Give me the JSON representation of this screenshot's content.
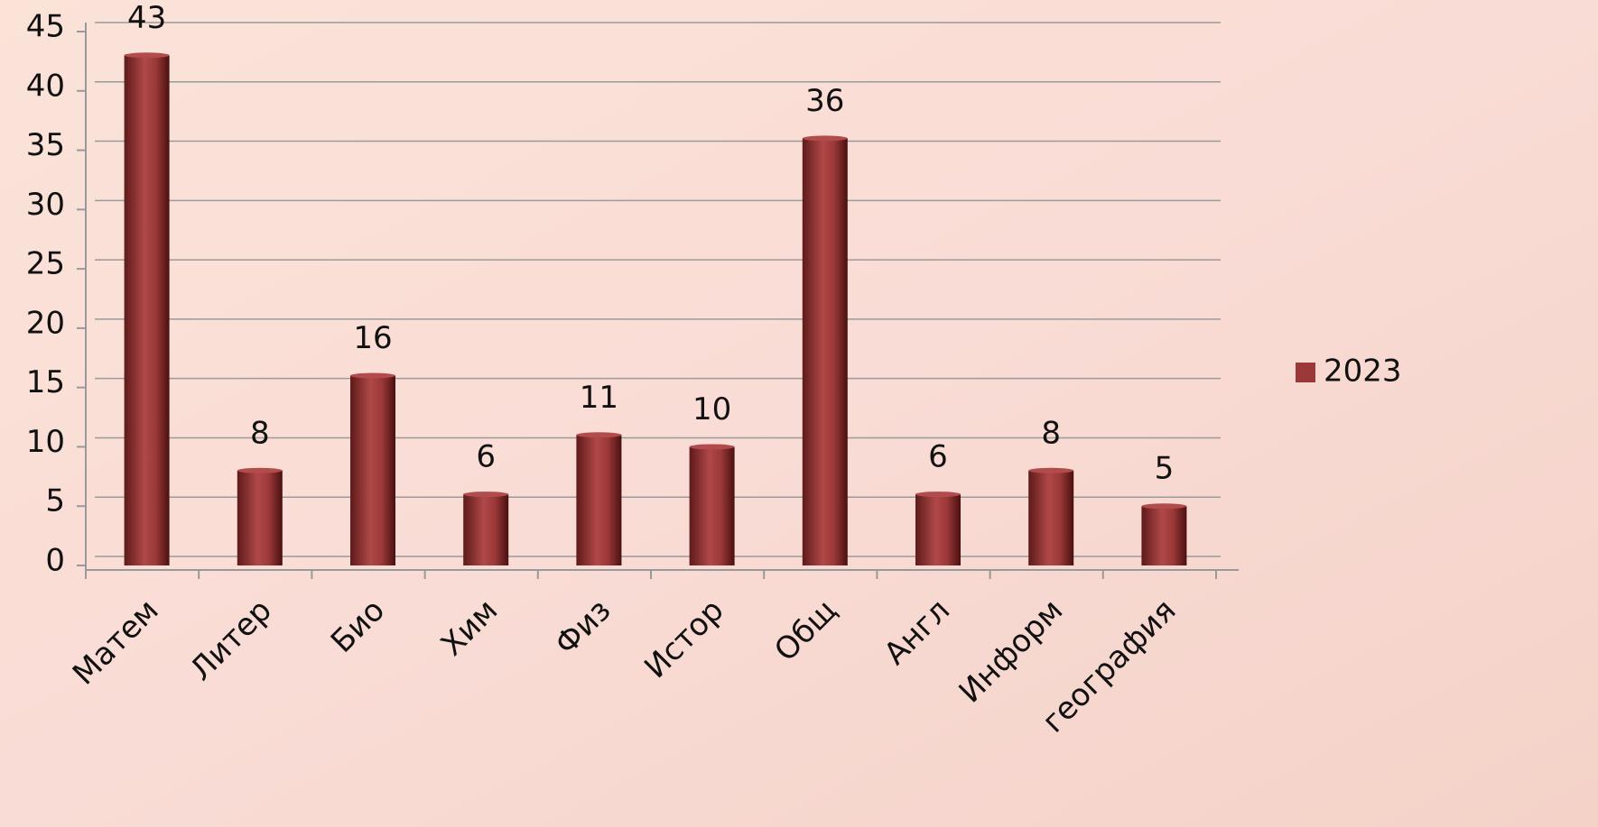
{
  "chart_data": {
    "type": "bar",
    "categories": [
      "Матем",
      "Литер",
      "Био",
      "Хим",
      "Физ",
      "Истор",
      "Общ",
      "Англ",
      "Информ",
      "география"
    ],
    "series": [
      {
        "name": "2023",
        "color": "#9b3838",
        "values": [
          43,
          8,
          16,
          6,
          11,
          10,
          36,
          6,
          8,
          5
        ]
      }
    ],
    "ylim": [
      0,
      45
    ],
    "yticks": [
      0,
      5,
      10,
      15,
      20,
      25,
      30,
      35,
      40,
      45
    ],
    "grid": true,
    "legend": "right"
  }
}
